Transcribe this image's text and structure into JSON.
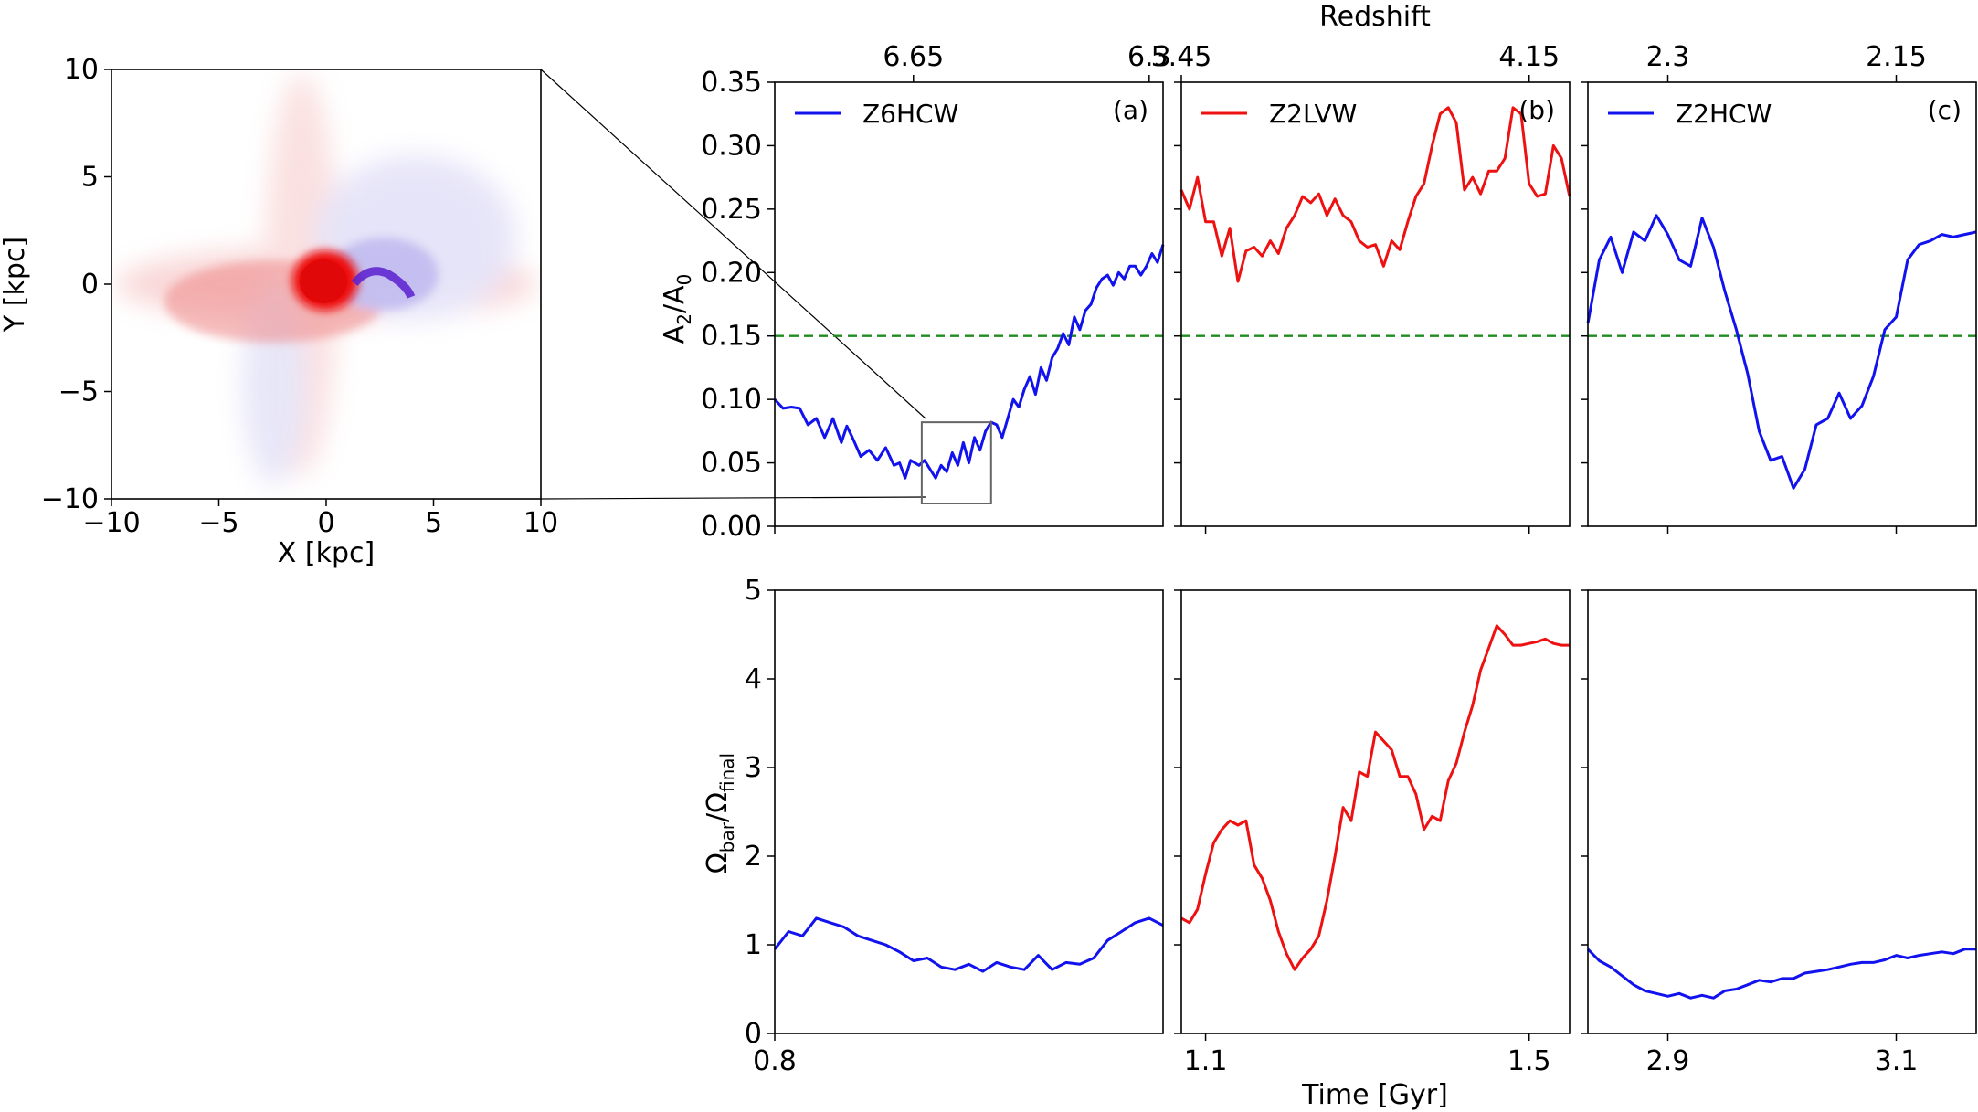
{
  "figure": {
    "colors": {
      "blue": "#1212ee",
      "red": "#ee1111",
      "threshold": "#1e8c1e",
      "frame": "#000000",
      "zoom_box": "#666666"
    },
    "secondary_axis_label": "Redshift",
    "time_axis_label": "Time [Gyr]"
  },
  "chart_data": [
    {
      "type": "image",
      "name": "density-map",
      "title": "",
      "xlabel": "X [kpc]",
      "ylabel": "Y [kpc]",
      "xlim": [
        -10,
        10
      ],
      "ylim": [
        -10,
        10
      ],
      "xticks": [
        "−10",
        "−5",
        "0",
        "5",
        "10"
      ],
      "yticks": [
        "10",
        "5",
        "0",
        "−5",
        "−10"
      ],
      "colors": [
        "#ee1111",
        "#1212ee"
      ]
    },
    {
      "type": "line",
      "panel": "a",
      "tag": "(a)",
      "ylabel_top": "A2/A0",
      "ylabel_bottom": "Ωbar/Ωfinal",
      "xlim": [
        0.8,
        0.94
      ],
      "xticks_time": [
        "0.8"
      ],
      "redshift_ticks": [
        "6.65",
        "6.3"
      ],
      "redshift_tick_times": [
        0.85,
        0.935
      ],
      "threshold": 0.15,
      "top_ylim": [
        0,
        0.35
      ],
      "top_yticks": [
        "0.00",
        "0.05",
        "0.10",
        "0.15",
        "0.20",
        "0.25",
        "0.30",
        "0.35"
      ],
      "bottom_ylim": [
        0,
        5
      ],
      "bottom_yticks": [
        "0",
        "1",
        "2",
        "3",
        "4",
        "5"
      ],
      "zoom_box": {
        "x0": 0.853,
        "x1": 0.878,
        "y0": 0.018,
        "y1": 0.082
      },
      "series": [
        {
          "name": "Z6HCW",
          "color": "#1212ee",
          "A2_over_A0": {
            "x": [
              0.8,
              0.803,
              0.806,
              0.809,
              0.812,
              0.815,
              0.818,
              0.821,
              0.824,
              0.826,
              0.828,
              0.831,
              0.834,
              0.837,
              0.84,
              0.843,
              0.845,
              0.847,
              0.849,
              0.852,
              0.854,
              0.856,
              0.858,
              0.86,
              0.862,
              0.864,
              0.866,
              0.868,
              0.87,
              0.872,
              0.874,
              0.876,
              0.878,
              0.88,
              0.882,
              0.884,
              0.886,
              0.888,
              0.89,
              0.892,
              0.894,
              0.896,
              0.898,
              0.9,
              0.902,
              0.904,
              0.906,
              0.908,
              0.91,
              0.912,
              0.914,
              0.916,
              0.918,
              0.92,
              0.922,
              0.924,
              0.926,
              0.928,
              0.93,
              0.932,
              0.934,
              0.936,
              0.938,
              0.94
            ],
            "y": [
              0.1,
              0.093,
              0.094,
              0.093,
              0.08,
              0.085,
              0.07,
              0.085,
              0.066,
              0.079,
              0.07,
              0.055,
              0.06,
              0.052,
              0.062,
              0.048,
              0.05,
              0.038,
              0.052,
              0.048,
              0.052,
              0.045,
              0.038,
              0.048,
              0.043,
              0.058,
              0.048,
              0.066,
              0.05,
              0.07,
              0.06,
              0.075,
              0.082,
              0.08,
              0.07,
              0.085,
              0.1,
              0.094,
              0.108,
              0.118,
              0.104,
              0.125,
              0.115,
              0.133,
              0.14,
              0.152,
              0.143,
              0.165,
              0.155,
              0.17,
              0.175,
              0.188,
              0.195,
              0.198,
              0.19,
              0.2,
              0.195,
              0.205,
              0.205,
              0.198,
              0.205,
              0.215,
              0.208,
              0.222
            ]
          },
          "omega_ratio": {
            "x": [
              0.8,
              0.805,
              0.81,
              0.815,
              0.82,
              0.825,
              0.83,
              0.835,
              0.84,
              0.845,
              0.85,
              0.855,
              0.86,
              0.865,
              0.87,
              0.875,
              0.88,
              0.885,
              0.89,
              0.895,
              0.9,
              0.905,
              0.91,
              0.915,
              0.92,
              0.925,
              0.93,
              0.935,
              0.94
            ],
            "y": [
              0.95,
              1.15,
              1.1,
              1.3,
              1.25,
              1.2,
              1.1,
              1.05,
              1.0,
              0.92,
              0.82,
              0.85,
              0.75,
              0.72,
              0.78,
              0.7,
              0.8,
              0.75,
              0.72,
              0.88,
              0.72,
              0.8,
              0.78,
              0.85,
              1.05,
              1.15,
              1.25,
              1.3,
              1.22
            ]
          }
        }
      ]
    },
    {
      "type": "line",
      "panel": "b",
      "tag": "(b)",
      "xlim": [
        1.07,
        1.55
      ],
      "xticks_time": [
        "1.1",
        "1.5"
      ],
      "xtick_times": [
        1.1,
        1.5
      ],
      "redshift_ticks": [
        "5.45",
        "4.15"
      ],
      "redshift_tick_times": [
        1.07,
        1.5
      ],
      "threshold": 0.15,
      "top_ylim": [
        0,
        0.35
      ],
      "bottom_ylim": [
        0,
        5
      ],
      "series": [
        {
          "name": "Z2LVW",
          "color": "#ee1111",
          "A2_over_A0": {
            "x": [
              1.07,
              1.08,
              1.09,
              1.1,
              1.11,
              1.12,
              1.13,
              1.14,
              1.15,
              1.16,
              1.17,
              1.18,
              1.19,
              1.2,
              1.21,
              1.22,
              1.23,
              1.24,
              1.25,
              1.26,
              1.27,
              1.28,
              1.29,
              1.3,
              1.31,
              1.32,
              1.33,
              1.34,
              1.35,
              1.36,
              1.37,
              1.38,
              1.39,
              1.4,
              1.41,
              1.42,
              1.43,
              1.44,
              1.45,
              1.46,
              1.47,
              1.48,
              1.49,
              1.5,
              1.51,
              1.52,
              1.53,
              1.54,
              1.55
            ],
            "y": [
              0.265,
              0.25,
              0.275,
              0.24,
              0.24,
              0.213,
              0.235,
              0.193,
              0.217,
              0.22,
              0.213,
              0.225,
              0.215,
              0.235,
              0.245,
              0.26,
              0.255,
              0.262,
              0.245,
              0.258,
              0.245,
              0.24,
              0.225,
              0.22,
              0.222,
              0.205,
              0.225,
              0.218,
              0.24,
              0.26,
              0.27,
              0.3,
              0.325,
              0.33,
              0.318,
              0.265,
              0.275,
              0.262,
              0.28,
              0.28,
              0.29,
              0.33,
              0.325,
              0.27,
              0.26,
              0.262,
              0.3,
              0.29,
              0.26
            ]
          },
          "omega_ratio": {
            "x": [
              1.07,
              1.08,
              1.09,
              1.1,
              1.11,
              1.12,
              1.13,
              1.14,
              1.15,
              1.16,
              1.17,
              1.18,
              1.19,
              1.2,
              1.21,
              1.22,
              1.23,
              1.24,
              1.25,
              1.26,
              1.27,
              1.28,
              1.29,
              1.3,
              1.31,
              1.32,
              1.33,
              1.34,
              1.35,
              1.36,
              1.37,
              1.38,
              1.39,
              1.4,
              1.41,
              1.42,
              1.43,
              1.44,
              1.45,
              1.46,
              1.47,
              1.48,
              1.49,
              1.5,
              1.51,
              1.52,
              1.53,
              1.54,
              1.55
            ],
            "y": [
              1.3,
              1.25,
              1.4,
              1.8,
              2.15,
              2.3,
              2.4,
              2.35,
              2.4,
              1.9,
              1.75,
              1.5,
              1.15,
              0.9,
              0.72,
              0.85,
              0.95,
              1.1,
              1.5,
              2.0,
              2.55,
              2.4,
              2.95,
              2.9,
              3.4,
              3.3,
              3.2,
              2.9,
              2.9,
              2.7,
              2.3,
              2.45,
              2.4,
              2.85,
              3.05,
              3.4,
              3.7,
              4.1,
              4.35,
              4.6,
              4.5,
              4.38,
              4.38,
              4.4,
              4.42,
              4.45,
              4.4,
              4.38,
              4.38
            ]
          }
        }
      ]
    },
    {
      "type": "line",
      "panel": "c",
      "tag": "(c)",
      "xlim": [
        2.83,
        3.17
      ],
      "xticks_time": [
        "2.9",
        "3.1"
      ],
      "xtick_times": [
        2.9,
        3.1
      ],
      "redshift_ticks": [
        "2.3",
        "2.15"
      ],
      "redshift_tick_times": [
        2.9,
        3.1
      ],
      "threshold": 0.15,
      "top_ylim": [
        0,
        0.35
      ],
      "bottom_ylim": [
        0,
        5
      ],
      "series": [
        {
          "name": "Z2HCW",
          "color": "#1212ee",
          "A2_over_A0": {
            "x": [
              2.83,
              2.84,
              2.85,
              2.86,
              2.87,
              2.88,
              2.89,
              2.9,
              2.91,
              2.92,
              2.93,
              2.94,
              2.95,
              2.96,
              2.97,
              2.98,
              2.99,
              3.0,
              3.01,
              3.02,
              3.03,
              3.04,
              3.05,
              3.06,
              3.07,
              3.08,
              3.09,
              3.1,
              3.11,
              3.12,
              3.13,
              3.14,
              3.15,
              3.16,
              3.17
            ],
            "y": [
              0.16,
              0.21,
              0.228,
              0.2,
              0.232,
              0.225,
              0.245,
              0.23,
              0.21,
              0.205,
              0.243,
              0.22,
              0.185,
              0.155,
              0.12,
              0.075,
              0.052,
              0.055,
              0.03,
              0.045,
              0.08,
              0.085,
              0.105,
              0.085,
              0.095,
              0.118,
              0.155,
              0.165,
              0.21,
              0.222,
              0.225,
              0.23,
              0.228,
              0.23,
              0.232
            ]
          },
          "omega_ratio": {
            "x": [
              2.83,
              2.84,
              2.85,
              2.86,
              2.87,
              2.88,
              2.89,
              2.9,
              2.91,
              2.92,
              2.93,
              2.94,
              2.95,
              2.96,
              2.97,
              2.98,
              2.99,
              3.0,
              3.01,
              3.02,
              3.03,
              3.04,
              3.05,
              3.06,
              3.07,
              3.08,
              3.09,
              3.1,
              3.11,
              3.12,
              3.13,
              3.14,
              3.15,
              3.16,
              3.17
            ],
            "y": [
              0.95,
              0.82,
              0.75,
              0.65,
              0.55,
              0.48,
              0.45,
              0.42,
              0.45,
              0.4,
              0.43,
              0.4,
              0.48,
              0.5,
              0.55,
              0.6,
              0.58,
              0.62,
              0.62,
              0.68,
              0.7,
              0.72,
              0.75,
              0.78,
              0.8,
              0.8,
              0.83,
              0.88,
              0.85,
              0.88,
              0.9,
              0.92,
              0.9,
              0.95,
              0.95
            ]
          }
        }
      ]
    }
  ]
}
